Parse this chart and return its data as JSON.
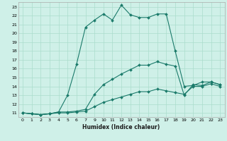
{
  "xlabel": "Humidex (Indice chaleur)",
  "bg_color": "#cff0e8",
  "grid_color": "#aaddcc",
  "line_color": "#1a7a6a",
  "xlim": [
    -0.5,
    23.5
  ],
  "ylim": [
    10.5,
    23.5
  ],
  "x_positions": [
    0,
    1,
    2,
    3,
    4,
    5,
    6,
    7,
    8,
    9,
    10,
    11,
    12,
    13,
    14,
    15,
    16,
    17,
    18,
    19,
    20,
    21,
    22
  ],
  "xtick_labels": [
    "0",
    "1",
    "2",
    "3",
    "4",
    "5",
    "6",
    "7",
    "9",
    "10",
    "11",
    "12",
    "13",
    "14",
    "15",
    "16",
    "17",
    "18",
    "19",
    "20",
    "21",
    "22",
    "23"
  ],
  "ytick_labels": [
    "11",
    "12",
    "13",
    "14",
    "15",
    "16",
    "17",
    "18",
    "19",
    "20",
    "21",
    "22",
    "23"
  ],
  "ytick_values": [
    11,
    12,
    13,
    14,
    15,
    16,
    17,
    18,
    19,
    20,
    21,
    22,
    23
  ],
  "series1_y": [
    11,
    10.9,
    10.8,
    10.9,
    11.1,
    13.0,
    16.5,
    20.7,
    21.5,
    22.2,
    21.5,
    23.2,
    22.1,
    21.8,
    21.8,
    22.2,
    22.2,
    18.0,
    14.0,
    14.1,
    14.5,
    14.5,
    14.2
  ],
  "series2_y": [
    11,
    10.9,
    10.8,
    10.9,
    11.1,
    11.1,
    11.2,
    11.4,
    13.1,
    14.2,
    14.8,
    15.4,
    15.9,
    16.4,
    16.4,
    16.8,
    16.5,
    16.3,
    13.0,
    14.2,
    14.1,
    14.5,
    14.2
  ],
  "series3_y": [
    11,
    10.9,
    10.8,
    10.9,
    11.0,
    11.0,
    11.1,
    11.2,
    11.7,
    12.2,
    12.5,
    12.8,
    13.1,
    13.4,
    13.4,
    13.7,
    13.5,
    13.3,
    13.1,
    14.0,
    14.0,
    14.3,
    14.0
  ]
}
